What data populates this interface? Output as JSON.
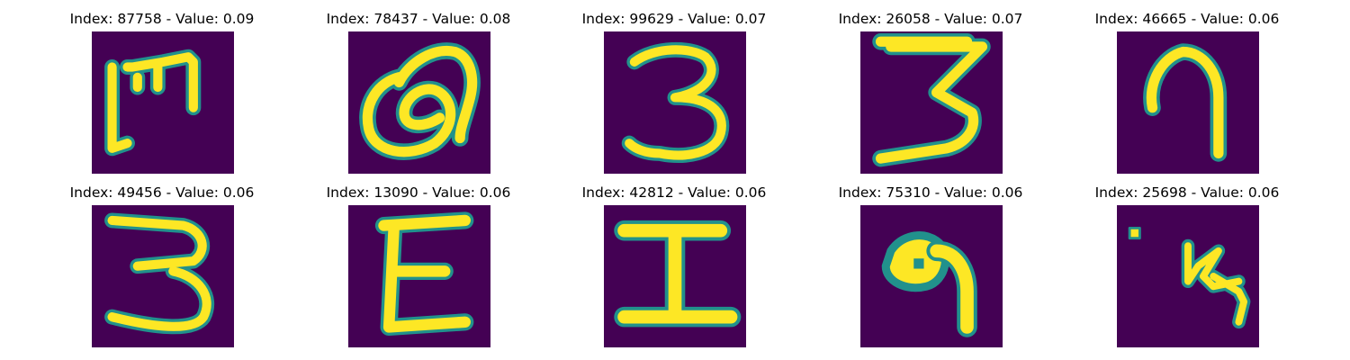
{
  "figure": {
    "panels": [
      {
        "title": "Index: 87758 - Value: 0.09",
        "glyph": "M-like"
      },
      {
        "title": "Index: 78437 - Value: 0.08",
        "glyph": "loop-Q"
      },
      {
        "title": "Index: 99629 - Value: 0.07",
        "glyph": "3"
      },
      {
        "title": "Index: 26058 - Value: 0.07",
        "glyph": "3-flat-top"
      },
      {
        "title": "Index: 46665 - Value: 0.06",
        "glyph": "n-hook"
      },
      {
        "title": "Index: 49456 - Value: 0.06",
        "glyph": "3-wide"
      },
      {
        "title": "Index: 13090 - Value: 0.06",
        "glyph": "E"
      },
      {
        "title": "Index: 42812 - Value: 0.06",
        "glyph": "I"
      },
      {
        "title": "Index: 75310 - Value: 0.06",
        "glyph": "blob-9"
      },
      {
        "title": "Index: 25698 - Value: 0.06",
        "glyph": "sparse-stroke"
      }
    ],
    "colors": {
      "background": "#440154",
      "stroke_core": "#fde725",
      "stroke_edge": "#21918c"
    }
  }
}
